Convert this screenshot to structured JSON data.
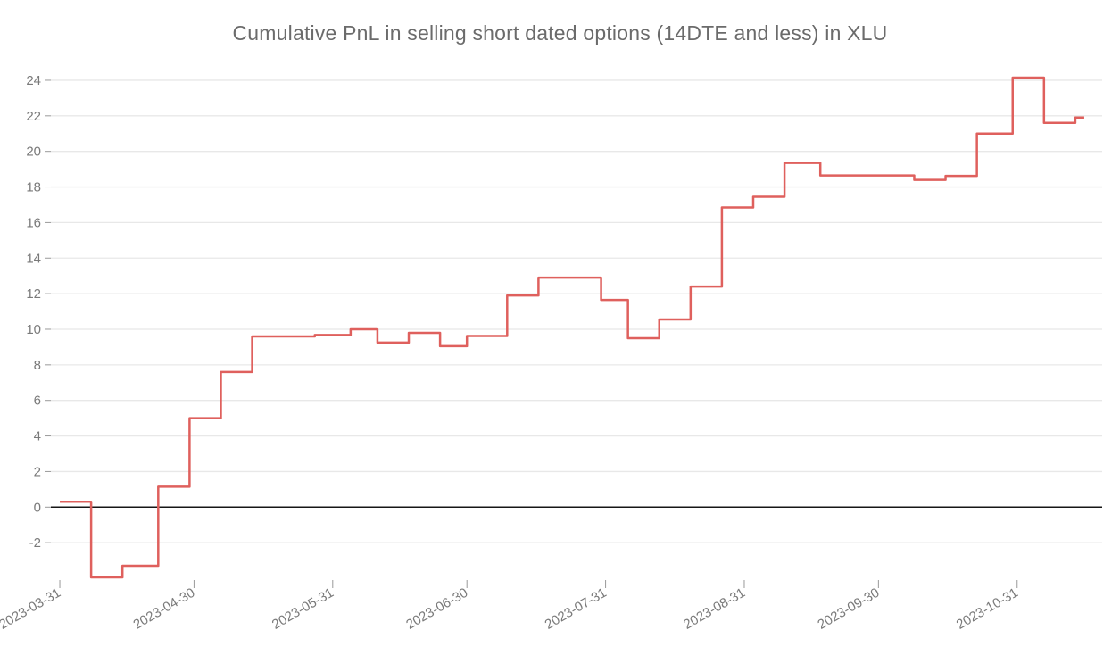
{
  "chart_data": {
    "type": "line",
    "line_shape": "step-after",
    "title": "Cumulative PnL in selling short dated options (14DTE and less) in XLU",
    "series_name": "Cumulative PnL",
    "legend": "none",
    "grid": "horizontal-only",
    "x_domain": [
      "2023-03-29",
      "2023-11-19"
    ],
    "ylim": [
      -4.1,
      24.6
    ],
    "y_ticks": [
      -2,
      0,
      2,
      4,
      6,
      8,
      10,
      12,
      14,
      16,
      18,
      20,
      22,
      24
    ],
    "x_tick_labels": [
      "2023-03-31",
      "2023-04-30",
      "2023-05-31",
      "2023-06-30",
      "2023-07-31",
      "2023-08-31",
      "2023-09-30",
      "2023-10-31"
    ],
    "x": [
      "2023-03-31",
      "2023-04-07",
      "2023-04-14",
      "2023-04-22",
      "2023-04-29",
      "2023-05-06",
      "2023-05-13",
      "2023-05-27",
      "2023-06-04",
      "2023-06-10",
      "2023-06-17",
      "2023-06-24",
      "2023-06-30",
      "2023-07-09",
      "2023-07-16",
      "2023-07-30",
      "2023-08-05",
      "2023-08-12",
      "2023-08-19",
      "2023-08-26",
      "2023-09-02",
      "2023-09-09",
      "2023-09-17",
      "2023-10-08",
      "2023-10-15",
      "2023-10-22",
      "2023-10-30",
      "2023-11-06",
      "2023-11-13"
    ],
    "values": [
      0.3,
      -3.95,
      -3.3,
      1.15,
      5.0,
      7.6,
      9.6,
      9.68,
      10.0,
      9.25,
      9.8,
      9.05,
      9.62,
      11.9,
      12.9,
      11.65,
      9.5,
      10.55,
      12.4,
      16.85,
      17.45,
      19.35,
      18.65,
      18.4,
      18.62,
      21.0,
      24.15,
      21.6,
      21.9
    ],
    "end_date": "2023-11-15",
    "colors": {
      "line": "#df605d",
      "grid": "#e8e8e8",
      "zero_line": "#161616",
      "tick_mark": "#999999",
      "tick_label": "#7a7a7a",
      "title": "#6b6b6b",
      "background": "#ffffff"
    }
  }
}
